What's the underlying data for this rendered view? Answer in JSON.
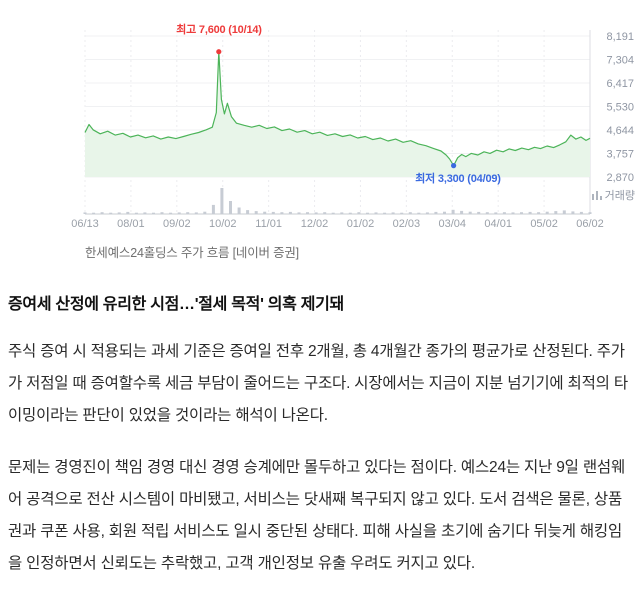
{
  "figure": {
    "caption": "한세예스24홀딩스 주가 흐름 [네이버 증권]"
  },
  "article": {
    "headline": "증여세 산정에 유리한 시점…'절세 목적' 의혹 제기돼",
    "paragraphs": [
      "주식 증여 시 적용되는 과세 기준은 증여일 전후 2개월, 총 4개월간 종가의 평균가로 산정된다. 주가가 저점일 때 증여할수록 세금 부담이 줄어드는 구조다. 시장에서는 지금이 지분 넘기기에 최적의 타이밍이라는 판단이 있었을 것이라는 해석이 나온다.",
      "문제는 경영진이 책임 경영 대신 경영 승계에만 몰두하고 있다는 점이다. 예스24는 지난 9일 랜섬웨어 공격으로 전산 시스템이 마비됐고, 서비스는 닷새째 복구되지 않고 있다. 도서 검색은 물론, 상품권과 쿠폰 사용, 회원 적립 서비스도 일시 중단된 상태다. 피해 사실을 초기에 숨기다 뒤늦게 해킹임을 인정하면서 신뢰도는 추락했고, 고객 개인정보 유출 우려도 커지고 있다."
    ]
  },
  "chart_data": {
    "type": "line",
    "title": "한세예스24홀딩스 주가 흐름",
    "source": "네이버 증권",
    "ylim": [
      2870,
      8191
    ],
    "y_ticks": [
      "8,191",
      "7,304",
      "6,417",
      "5,530",
      "4,644",
      "3,757",
      "2,870"
    ],
    "x_ticks": [
      "06/13",
      "08/01",
      "09/02",
      "10/02",
      "11/01",
      "12/02",
      "01/02",
      "02/03",
      "03/04",
      "04/01",
      "05/02",
      "06/02"
    ],
    "volume_label": "거래량",
    "line_color": "#4cb459",
    "fill_color": "#e8f5e9",
    "grid_color": "#f0f1f3",
    "vgrid_color": "#ececef",
    "axis_color": "#c9ccd2",
    "volume_color": "#c7ccd4",
    "tick_label_color": "#8f96a3",
    "annotations": {
      "high": {
        "text": "최고 7,600 (10/14)",
        "value": 7600,
        "date": "10/14",
        "x": 0.265,
        "color": "#ee3b3b"
      },
      "low": {
        "text": "최저 3,300 (04/09)",
        "value": 3300,
        "date": "04/09",
        "x": 0.73,
        "color": "#3a6ae0"
      }
    },
    "price_points": [
      [
        0,
        4550
      ],
      [
        0.008,
        4850
      ],
      [
        0.016,
        4650
      ],
      [
        0.03,
        4500
      ],
      [
        0.045,
        4600
      ],
      [
        0.06,
        4450
      ],
      [
        0.075,
        4520
      ],
      [
        0.09,
        4380
      ],
      [
        0.105,
        4450
      ],
      [
        0.12,
        4350
      ],
      [
        0.135,
        4420
      ],
      [
        0.15,
        4300
      ],
      [
        0.165,
        4380
      ],
      [
        0.18,
        4320
      ],
      [
        0.195,
        4400
      ],
      [
        0.21,
        4480
      ],
      [
        0.225,
        4550
      ],
      [
        0.24,
        4650
      ],
      [
        0.252,
        4750
      ],
      [
        0.26,
        5300
      ],
      [
        0.265,
        7600
      ],
      [
        0.27,
        5800
      ],
      [
        0.276,
        5250
      ],
      [
        0.282,
        5650
      ],
      [
        0.29,
        5150
      ],
      [
        0.3,
        4900
      ],
      [
        0.315,
        4820
      ],
      [
        0.33,
        4750
      ],
      [
        0.345,
        4820
      ],
      [
        0.36,
        4700
      ],
      [
        0.375,
        4760
      ],
      [
        0.39,
        4620
      ],
      [
        0.405,
        4680
      ],
      [
        0.42,
        4560
      ],
      [
        0.435,
        4620
      ],
      [
        0.45,
        4500
      ],
      [
        0.465,
        4560
      ],
      [
        0.48,
        4440
      ],
      [
        0.495,
        4500
      ],
      [
        0.51,
        4400
      ],
      [
        0.525,
        4460
      ],
      [
        0.54,
        4340
      ],
      [
        0.555,
        4400
      ],
      [
        0.57,
        4280
      ],
      [
        0.585,
        4340
      ],
      [
        0.6,
        4230
      ],
      [
        0.615,
        4300
      ],
      [
        0.63,
        4180
      ],
      [
        0.645,
        4240
      ],
      [
        0.66,
        4120
      ],
      [
        0.675,
        4050
      ],
      [
        0.69,
        3950
      ],
      [
        0.705,
        3850
      ],
      [
        0.715,
        3700
      ],
      [
        0.722,
        3550
      ],
      [
        0.73,
        3300
      ],
      [
        0.738,
        3600
      ],
      [
        0.746,
        3720
      ],
      [
        0.754,
        3640
      ],
      [
        0.765,
        3760
      ],
      [
        0.778,
        3700
      ],
      [
        0.79,
        3820
      ],
      [
        0.802,
        3760
      ],
      [
        0.815,
        3880
      ],
      [
        0.828,
        3820
      ],
      [
        0.84,
        3930
      ],
      [
        0.852,
        3870
      ],
      [
        0.865,
        3960
      ],
      [
        0.878,
        3900
      ],
      [
        0.89,
        3990
      ],
      [
        0.902,
        3940
      ],
      [
        0.915,
        4040
      ],
      [
        0.928,
        3980
      ],
      [
        0.94,
        4080
      ],
      [
        0.952,
        4200
      ],
      [
        0.962,
        4450
      ],
      [
        0.972,
        4300
      ],
      [
        0.982,
        4380
      ],
      [
        0.992,
        4250
      ],
      [
        1,
        4330
      ]
    ],
    "volume_bars": [
      0.06,
      0.05,
      0.07,
      0.05,
      0.06,
      0.08,
      0.05,
      0.06,
      0.05,
      0.07,
      0.05,
      0.06,
      0.07,
      0.06,
      0.09,
      0.35,
      1.0,
      0.5,
      0.25,
      0.15,
      0.11,
      0.09,
      0.08,
      0.07,
      0.08,
      0.06,
      0.07,
      0.06,
      0.07,
      0.05,
      0.06,
      0.05,
      0.07,
      0.05,
      0.06,
      0.05,
      0.06,
      0.05,
      0.07,
      0.05,
      0.06,
      0.08,
      0.09,
      0.16,
      0.12,
      0.09,
      0.08,
      0.07,
      0.06,
      0.07,
      0.06,
      0.07,
      0.08,
      0.07,
      0.09,
      0.11,
      0.14,
      0.1,
      0.08,
      0.07
    ]
  }
}
